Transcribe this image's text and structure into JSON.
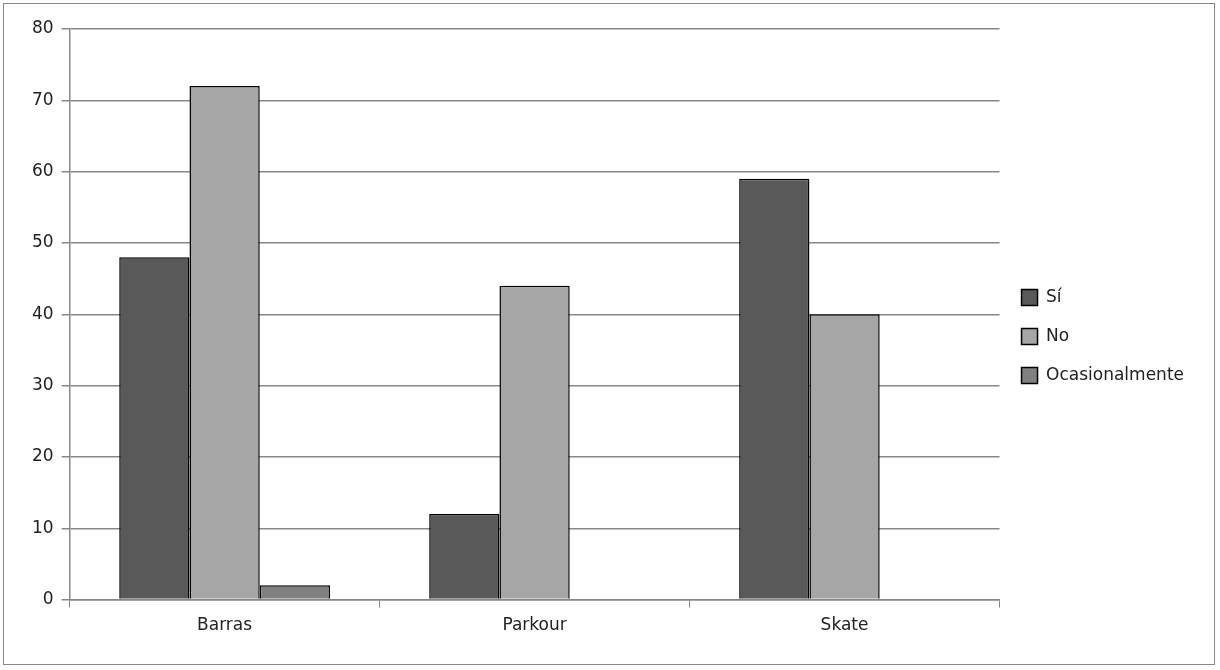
{
  "chart_data": {
    "type": "bar",
    "categories": [
      "Barras",
      "Parkour",
      "Skate"
    ],
    "series": [
      {
        "name": "Sí",
        "color": "#595959",
        "values": [
          48,
          12,
          59
        ]
      },
      {
        "name": "No",
        "color": "#a6a6a6",
        "values": [
          72,
          44,
          40
        ]
      },
      {
        "name": "Ocasionalmente",
        "color": "#808080",
        "values": [
          2,
          null,
          null
        ]
      }
    ],
    "ylim": [
      0,
      80
    ],
    "yticks": [
      0,
      10,
      20,
      30,
      40,
      50,
      60,
      70,
      80
    ],
    "grid": "y",
    "legend": "right"
  }
}
